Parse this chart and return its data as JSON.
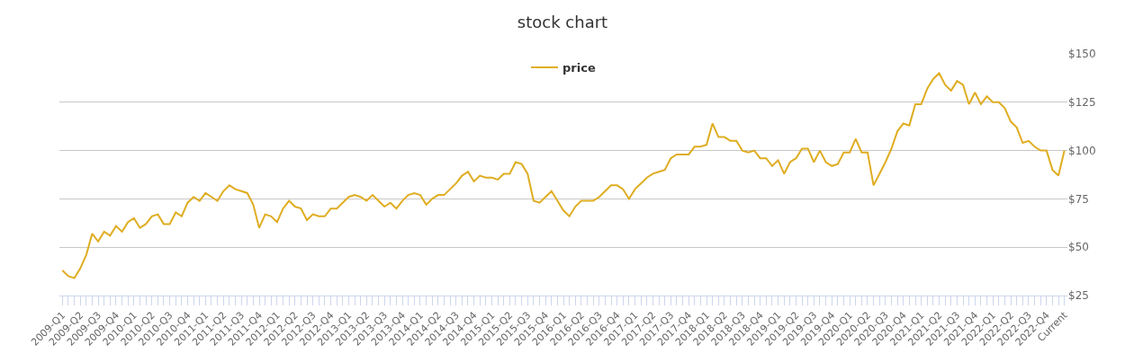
{
  "chart_data": {
    "type": "line",
    "title": "stock chart",
    "categories": [
      "2009-Q1",
      null,
      null,
      "2009-Q2",
      null,
      null,
      "2009-Q3",
      null,
      null,
      "2009-Q4",
      null,
      null,
      "2010-Q1",
      null,
      null,
      "2010-Q2",
      null,
      null,
      "2010-Q3",
      null,
      null,
      "2010-Q4",
      null,
      null,
      "2011-Q1",
      null,
      null,
      "2011-Q2",
      null,
      null,
      "2011-Q3",
      null,
      null,
      "2011-Q4",
      null,
      null,
      "2012-Q1",
      null,
      null,
      "2012-Q2",
      null,
      null,
      "2012-Q3",
      null,
      null,
      "2012-Q4",
      null,
      null,
      "2013-Q1",
      null,
      null,
      "2013-Q2",
      null,
      null,
      "2013-Q3",
      null,
      null,
      "2013-Q4",
      null,
      null,
      "2014-Q1",
      null,
      null,
      "2014-Q2",
      null,
      null,
      "2014-Q3",
      null,
      null,
      "2014-Q4",
      null,
      null,
      "2015-Q1",
      null,
      null,
      "2015-Q2",
      null,
      null,
      "2015-Q3",
      null,
      null,
      "2015-Q4",
      null,
      null,
      "2016-Q1",
      null,
      null,
      "2016-Q2",
      null,
      null,
      "2016-Q3",
      null,
      null,
      "2016-Q4",
      null,
      null,
      "2017-Q1",
      null,
      null,
      "2017-Q2",
      null,
      null,
      "2017-Q3",
      null,
      null,
      "2017-Q4",
      null,
      null,
      "2018-Q1",
      null,
      null,
      "2018-Q2",
      null,
      null,
      "2018-Q3",
      null,
      null,
      "2018-Q4",
      null,
      null,
      "2019-Q1",
      null,
      null,
      "2019-Q2",
      null,
      null,
      "2019-Q3",
      null,
      null,
      "2019-Q4",
      null,
      null,
      "2020-Q1",
      null,
      null,
      "2020-Q2",
      null,
      null,
      "2020-Q3",
      null,
      null,
      "2020-Q4",
      null,
      null,
      "2021-Q1",
      null,
      null,
      "2021-Q2",
      null,
      null,
      "2021-Q3",
      null,
      null,
      "2021-Q4",
      null,
      null,
      "2022-Q1",
      null,
      null,
      "2022-Q2",
      null,
      null,
      "2022-Q3",
      null,
      null,
      "2022-Q4",
      null,
      null,
      "Current"
    ],
    "series": [
      {
        "name": "price",
        "color": "#dfad22",
        "values": [
          38,
          35,
          34,
          39,
          46,
          57,
          53,
          58,
          56,
          61,
          58,
          63,
          65,
          60,
          62,
          66,
          67,
          62,
          62,
          68,
          66,
          73,
          76,
          74,
          78,
          76,
          74,
          79,
          82,
          80,
          79,
          78,
          72,
          60,
          67,
          66,
          63,
          70,
          74,
          71,
          70,
          64,
          67,
          66,
          66,
          70,
          70,
          73,
          76,
          77,
          76,
          74,
          77,
          74,
          71,
          73,
          70,
          74,
          77,
          78,
          77,
          72,
          75,
          77,
          77,
          80,
          83,
          87,
          89,
          84,
          87,
          86,
          86,
          85,
          88,
          88,
          94,
          93,
          88,
          74,
          73,
          76,
          79,
          74,
          69,
          66,
          71,
          74,
          74,
          74,
          76,
          79,
          82,
          82,
          80,
          75,
          80,
          83,
          86,
          88,
          89,
          90,
          96,
          98,
          98,
          98,
          102,
          102,
          103,
          114,
          107,
          107,
          105,
          105,
          100,
          99,
          100,
          96,
          96,
          92,
          95,
          88,
          94,
          96,
          101,
          101,
          94,
          100,
          94,
          92,
          93,
          99,
          99,
          106,
          99,
          99,
          82,
          88,
          94,
          101,
          110,
          114,
          113,
          124,
          124,
          132,
          137,
          140,
          134,
          131,
          136,
          134,
          124,
          130,
          124,
          128,
          125,
          125,
          122,
          115,
          112,
          104,
          105,
          102,
          100,
          100,
          90,
          87,
          100
        ]
      }
    ],
    "ylim": [
      25,
      150
    ],
    "yticks": [
      {
        "value": 25,
        "label": "$25"
      },
      {
        "value": 50,
        "label": "$50"
      },
      {
        "value": 75,
        "label": "$75"
      },
      {
        "value": 100,
        "label": "$100"
      },
      {
        "value": 125,
        "label": "$125"
      },
      {
        "value": 150,
        "label": "$150"
      }
    ],
    "grid": "y",
    "legend": "top",
    "line_style": "solid"
  }
}
